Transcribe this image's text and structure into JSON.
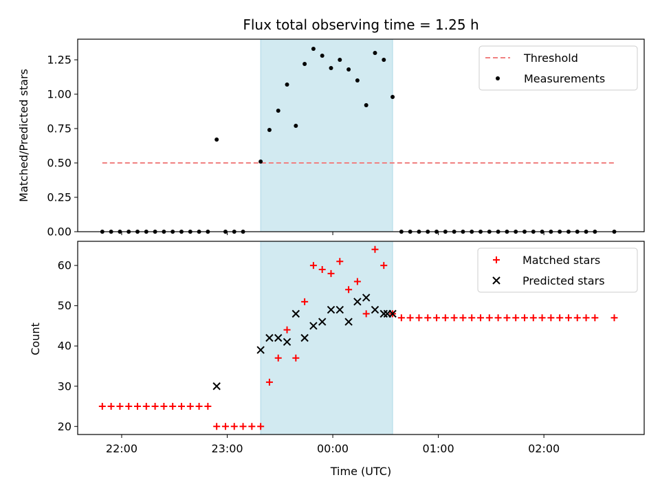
{
  "chart_data": [
    {
      "type": "scatter",
      "title": "Flux total observing time = 1.25 h",
      "xlabel": "",
      "ylabel": "Matched/Predicted stars",
      "ylim": [
        0,
        1.4
      ],
      "yticks": [
        "0.00",
        "0.25",
        "0.50",
        "0.75",
        "1.00",
        "1.25"
      ],
      "ytick_values": [
        0,
        0.25,
        0.5,
        0.75,
        1.0,
        1.25
      ],
      "xlim": [
        "21:35",
        "02:57"
      ],
      "xticks": [
        "22:00",
        "23:00",
        "00:00",
        "01:00",
        "02:00"
      ],
      "xtick_labels_shown": false,
      "highlight_span": {
        "start": "23:19",
        "end": "00:34",
        "color": "#add8e6"
      },
      "legend_position": "top-right",
      "series": [
        {
          "name": "Threshold",
          "style": "dashed-line",
          "color": "#f08080",
          "points": [
            [
              "21:49",
              0.5
            ],
            [
              "02:40",
              0.5
            ]
          ]
        },
        {
          "name": "Measurements",
          "style": "dot",
          "color": "#000000",
          "points": [
            [
              "21:49",
              0
            ],
            [
              "21:54",
              0
            ],
            [
              "21:59",
              0
            ],
            [
              "22:04",
              0
            ],
            [
              "22:09",
              0
            ],
            [
              "22:14",
              0
            ],
            [
              "22:19",
              0
            ],
            [
              "22:24",
              0
            ],
            [
              "22:29",
              0
            ],
            [
              "22:34",
              0
            ],
            [
              "22:39",
              0
            ],
            [
              "22:44",
              0
            ],
            [
              "22:49",
              0
            ],
            [
              "22:54",
              0.67
            ],
            [
              "22:59",
              0
            ],
            [
              "23:04",
              0
            ],
            [
              "23:09",
              0
            ],
            [
              "23:19",
              0.51
            ],
            [
              "23:24",
              0.74
            ],
            [
              "23:29",
              0.88
            ],
            [
              "23:34",
              1.07
            ],
            [
              "23:39",
              0.77
            ],
            [
              "23:44",
              1.22
            ],
            [
              "23:49",
              1.33
            ],
            [
              "23:54",
              1.28
            ],
            [
              "23:59",
              1.19
            ],
            [
              "00:04",
              1.25
            ],
            [
              "00:09",
              1.18
            ],
            [
              "00:14",
              1.1
            ],
            [
              "00:19",
              0.92
            ],
            [
              "00:24",
              1.3
            ],
            [
              "00:29",
              1.25
            ],
            [
              "00:34",
              0.98
            ],
            [
              "00:39",
              0
            ],
            [
              "00:44",
              0
            ],
            [
              "00:49",
              0
            ],
            [
              "00:54",
              0
            ],
            [
              "00:59",
              0
            ],
            [
              "01:04",
              0
            ],
            [
              "01:09",
              0
            ],
            [
              "01:14",
              0
            ],
            [
              "01:19",
              0
            ],
            [
              "01:24",
              0
            ],
            [
              "01:29",
              0
            ],
            [
              "01:34",
              0
            ],
            [
              "01:39",
              0
            ],
            [
              "01:44",
              0
            ],
            [
              "01:49",
              0
            ],
            [
              "01:54",
              0
            ],
            [
              "01:59",
              0
            ],
            [
              "02:04",
              0
            ],
            [
              "02:09",
              0
            ],
            [
              "02:14",
              0
            ],
            [
              "02:19",
              0
            ],
            [
              "02:24",
              0
            ],
            [
              "02:29",
              0
            ],
            [
              "02:40",
              0
            ]
          ]
        }
      ]
    },
    {
      "type": "scatter",
      "title": "",
      "xlabel": "Time (UTC)",
      "ylabel": "Count",
      "ylim": [
        18,
        66
      ],
      "yticks": [
        "20",
        "30",
        "40",
        "50",
        "60"
      ],
      "ytick_values": [
        20,
        30,
        40,
        50,
        60
      ],
      "xlim": [
        "21:35",
        "02:57"
      ],
      "xticks": [
        "22:00",
        "23:00",
        "00:00",
        "01:00",
        "02:00"
      ],
      "xtick_labels_shown": true,
      "highlight_span": {
        "start": "23:19",
        "end": "00:34",
        "color": "#add8e6"
      },
      "legend_position": "top-right",
      "series": [
        {
          "name": "Matched stars",
          "style": "plus",
          "color": "#ff0000",
          "points": [
            [
              "21:49",
              25
            ],
            [
              "21:54",
              25
            ],
            [
              "21:59",
              25
            ],
            [
              "22:04",
              25
            ],
            [
              "22:09",
              25
            ],
            [
              "22:14",
              25
            ],
            [
              "22:19",
              25
            ],
            [
              "22:24",
              25
            ],
            [
              "22:29",
              25
            ],
            [
              "22:34",
              25
            ],
            [
              "22:39",
              25
            ],
            [
              "22:44",
              25
            ],
            [
              "22:49",
              25
            ],
            [
              "22:54",
              20
            ],
            [
              "22:59",
              20
            ],
            [
              "23:04",
              20
            ],
            [
              "23:09",
              20
            ],
            [
              "23:14",
              20
            ],
            [
              "23:19",
              20
            ],
            [
              "23:24",
              31
            ],
            [
              "23:29",
              37
            ],
            [
              "23:34",
              44
            ],
            [
              "23:39",
              37
            ],
            [
              "23:44",
              51
            ],
            [
              "23:49",
              60
            ],
            [
              "23:54",
              59
            ],
            [
              "23:59",
              58
            ],
            [
              "00:04",
              61
            ],
            [
              "00:09",
              54
            ],
            [
              "00:14",
              56
            ],
            [
              "00:19",
              48
            ],
            [
              "00:24",
              64
            ],
            [
              "00:29",
              60
            ],
            [
              "00:34",
              48
            ],
            [
              "00:39",
              47
            ],
            [
              "00:44",
              47
            ],
            [
              "00:49",
              47
            ],
            [
              "00:54",
              47
            ],
            [
              "00:59",
              47
            ],
            [
              "01:04",
              47
            ],
            [
              "01:09",
              47
            ],
            [
              "01:14",
              47
            ],
            [
              "01:19",
              47
            ],
            [
              "01:24",
              47
            ],
            [
              "01:29",
              47
            ],
            [
              "01:34",
              47
            ],
            [
              "01:39",
              47
            ],
            [
              "01:44",
              47
            ],
            [
              "01:49",
              47
            ],
            [
              "01:54",
              47
            ],
            [
              "01:59",
              47
            ],
            [
              "02:04",
              47
            ],
            [
              "02:09",
              47
            ],
            [
              "02:14",
              47
            ],
            [
              "02:19",
              47
            ],
            [
              "02:24",
              47
            ],
            [
              "02:29",
              47
            ],
            [
              "02:40",
              47
            ]
          ]
        },
        {
          "name": "Predicted stars",
          "style": "x",
          "color": "#000000",
          "points": [
            [
              "22:54",
              30
            ],
            [
              "23:19",
              39
            ],
            [
              "23:24",
              42
            ],
            [
              "23:29",
              42
            ],
            [
              "23:34",
              41
            ],
            [
              "23:39",
              48
            ],
            [
              "23:44",
              42
            ],
            [
              "23:49",
              45
            ],
            [
              "23:54",
              46
            ],
            [
              "23:59",
              49
            ],
            [
              "00:04",
              49
            ],
            [
              "00:09",
              46
            ],
            [
              "00:14",
              51
            ],
            [
              "00:19",
              52
            ],
            [
              "00:24",
              49
            ],
            [
              "00:29",
              48
            ],
            [
              "00:31",
              48
            ],
            [
              "00:34",
              48
            ]
          ]
        }
      ]
    }
  ]
}
